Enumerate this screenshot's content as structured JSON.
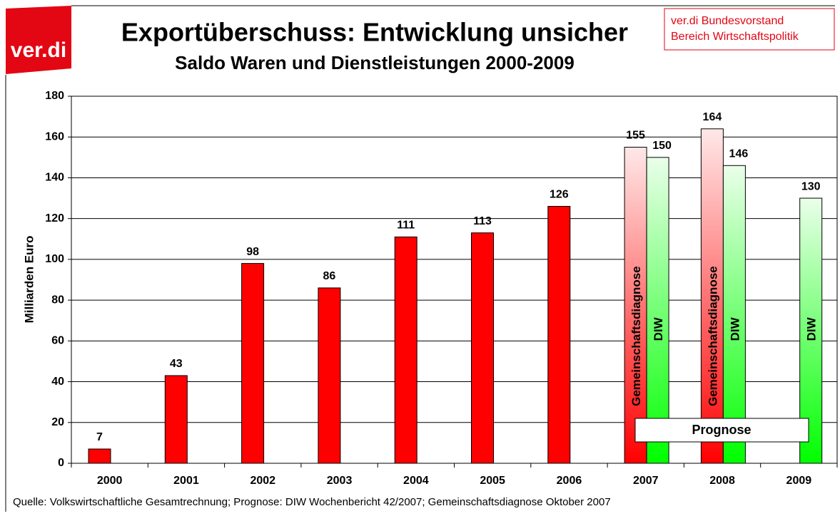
{
  "logo": "ver.di",
  "source_box": [
    "ver.di Bundesvorstand",
    "Bereich Wirtschaftspolitik"
  ],
  "footnote": "Quelle: Volkswirtschaftliche Gesamtrechnung; Prognose: DIW Wochenbericht 42/2007; Gemeinschaftsdiagnose Oktober 2007",
  "chart_data": {
    "type": "bar",
    "title": "Exportüberschuss: Entwicklung unsicher",
    "subtitle": "Saldo Waren und Dienstleistungen 2000-2009",
    "y_label": "Milliarden Euro",
    "annotation": "Prognose",
    "categories": [
      "2000",
      "2001",
      "2002",
      "2003",
      "2004",
      "2005",
      "2006",
      "2007",
      "2008",
      "2009"
    ],
    "series": [
      {
        "color": "#ff0000",
        "values": [
          7,
          43,
          98,
          86,
          111,
          113,
          126,
          null,
          null,
          null
        ]
      },
      {
        "name": "Gemeinschaftsdiagnose",
        "color": "#ff0000",
        "values": [
          null,
          null,
          null,
          null,
          null,
          null,
          null,
          155,
          164,
          null
        ]
      },
      {
        "name": "DIW",
        "color": "#00ff00",
        "values": [
          null,
          null,
          null,
          null,
          null,
          null,
          null,
          150,
          146,
          130
        ]
      }
    ],
    "ylim": [
      0,
      180
    ],
    "yticks": [
      0,
      20,
      40,
      60,
      80,
      100,
      120,
      140,
      160,
      180
    ],
    "grid": true
  }
}
